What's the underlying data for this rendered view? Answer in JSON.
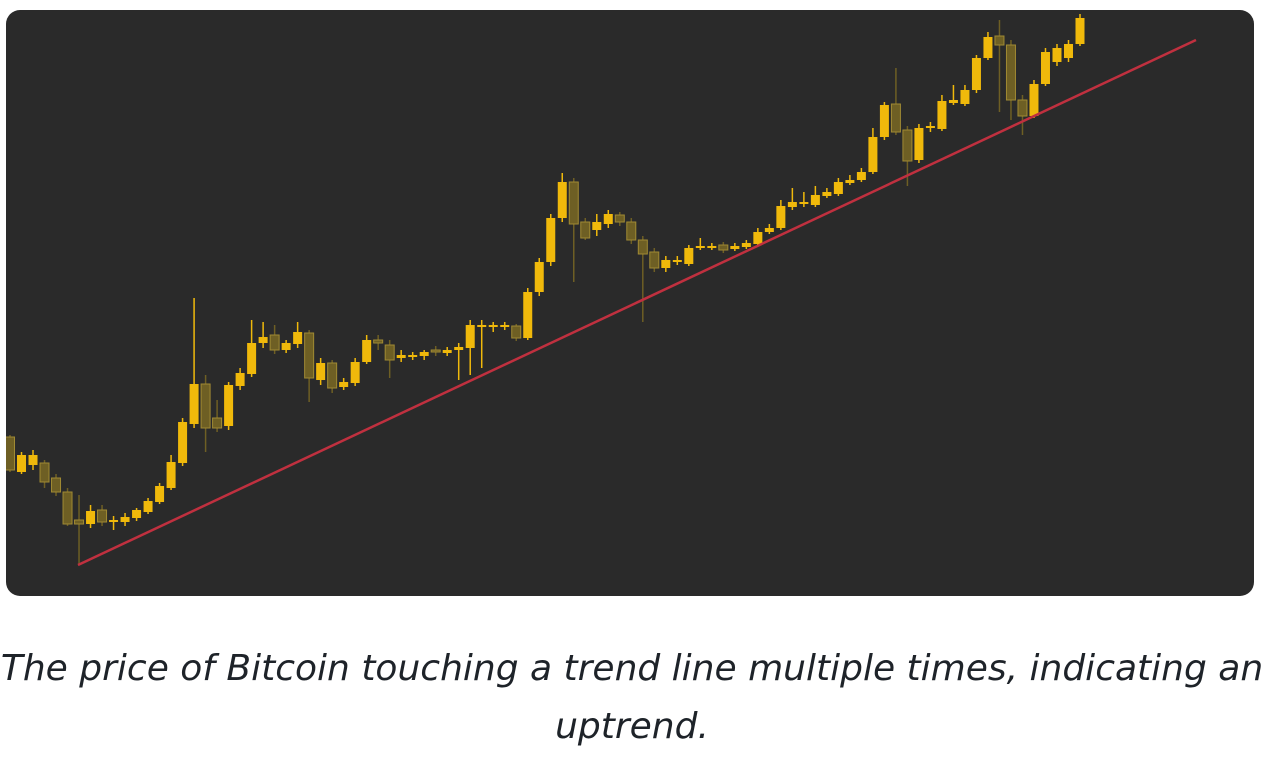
{
  "chart_data": {
    "type": "candlestick",
    "open": [
      158,
      123,
      130,
      132,
      117,
      103,
      75,
      71,
      85,
      73,
      73,
      77,
      83,
      93,
      107,
      132,
      171,
      211,
      177,
      169,
      209,
      221,
      252,
      260,
      245,
      251,
      262,
      215,
      232,
      208,
      212,
      233,
      255,
      250,
      237,
      238,
      239,
      245,
      242,
      245,
      247,
      268,
      268,
      268,
      269,
      257,
      303,
      333,
      377,
      413,
      373,
      365,
      371,
      380,
      373,
      355,
      343,
      327,
      333,
      331,
      347,
      347,
      350,
      346,
      348,
      351,
      363,
      367,
      388,
      391,
      390,
      399,
      401,
      412,
      415,
      423,
      458,
      491,
      465,
      435,
      467,
      466,
      492,
      491,
      505,
      537,
      559,
      550,
      495,
      479,
      511,
      533,
      537,
      551
    ],
    "high": [
      160,
      143,
      145,
      135,
      121,
      107,
      100,
      90,
      90,
      79,
      82,
      87,
      97,
      112,
      140,
      177,
      297,
      220,
      195,
      213,
      227,
      275,
      273,
      270,
      255,
      273,
      265,
      237,
      235,
      217,
      237,
      260,
      260,
      255,
      245,
      243,
      245,
      249,
      248,
      252,
      275,
      275,
      273,
      273,
      271,
      307,
      337,
      381,
      422,
      417,
      377,
      381,
      385,
      383,
      377,
      359,
      347,
      339,
      339,
      350,
      357,
      352,
      353,
      352,
      355,
      367,
      371,
      395,
      407,
      403,
      409,
      407,
      417,
      420,
      427,
      467,
      493,
      527,
      469,
      471,
      473,
      500,
      510,
      510,
      540,
      563,
      575,
      555,
      500,
      515,
      547,
      551,
      555,
      581
    ],
    "low": [
      123,
      121,
      125,
      107,
      99,
      69,
      30,
      67,
      69,
      65,
      69,
      74,
      81,
      91,
      105,
      129,
      167,
      143,
      163,
      165,
      205,
      218,
      247,
      241,
      242,
      247,
      193,
      210,
      202,
      205,
      209,
      231,
      245,
      217,
      233,
      235,
      235,
      239,
      239,
      215,
      220,
      227,
      263,
      265,
      254,
      255,
      299,
      329,
      373,
      313,
      355,
      359,
      367,
      369,
      351,
      273,
      323,
      323,
      330,
      329,
      345,
      345,
      342,
      344,
      346,
      349,
      361,
      365,
      385,
      388,
      388,
      397,
      399,
      410,
      413,
      421,
      455,
      460,
      409,
      432,
      463,
      464,
      490,
      489,
      502,
      535,
      483,
      475,
      460,
      477,
      509,
      529,
      533,
      549
    ],
    "close": [
      125,
      140,
      140,
      113,
      103,
      71,
      71,
      84,
      73,
      75,
      78,
      85,
      94,
      109,
      133,
      173,
      211,
      167,
      167,
      210,
      222,
      252,
      258,
      245,
      252,
      263,
      217,
      232,
      207,
      213,
      233,
      255,
      252,
      235,
      240,
      240,
      243,
      243,
      245,
      248,
      270,
      270,
      270,
      270,
      257,
      303,
      333,
      377,
      413,
      371,
      357,
      373,
      381,
      373,
      355,
      341,
      327,
      335,
      335,
      347,
      349,
      349,
      345,
      349,
      352,
      363,
      367,
      389,
      393,
      393,
      400,
      403,
      413,
      415,
      423,
      458,
      490,
      463,
      434,
      467,
      469,
      494,
      495,
      505,
      537,
      558,
      550,
      495,
      479,
      511,
      543,
      547,
      551,
      577
    ],
    "up_color": "#f0b90b",
    "down_color": "#6e5f24",
    "ylim": [
      0,
      585
    ]
  },
  "caption": "The price of Bitcoin touching a trend line multiple times, indicating an uptrend."
}
